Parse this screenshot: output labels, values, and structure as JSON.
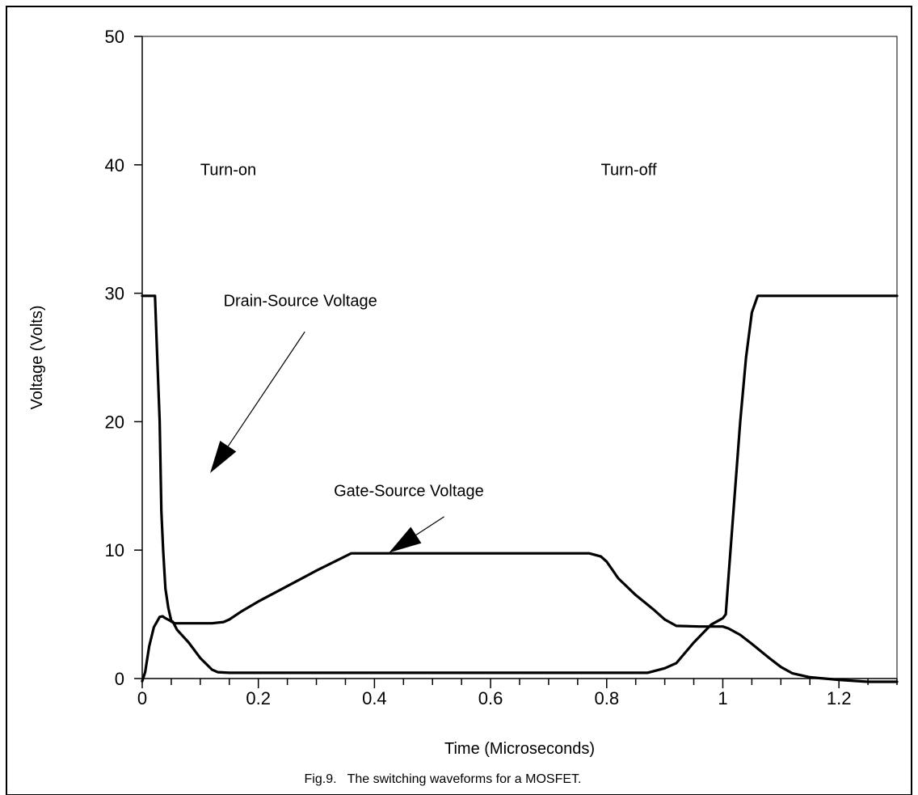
{
  "caption": "Fig.9.   The switching waveforms for a MOSFET.",
  "chart_data": {
    "type": "line",
    "title": "",
    "xlabel": "Time (Microseconds)",
    "ylabel": "Voltage (Volts)",
    "xlim": [
      0,
      1.3
    ],
    "ylim": [
      0,
      50
    ],
    "x_tick_values": [
      0,
      0.2,
      0.4,
      0.6,
      0.8,
      1,
      1.2
    ],
    "x_tick_labels": [
      "0",
      "0.2",
      "0.4",
      "0.6",
      "0.8",
      "1",
      "1.2"
    ],
    "x_minor_step": 0.05,
    "y_tick_values": [
      0,
      10,
      20,
      30,
      40,
      50
    ],
    "y_tick_labels": [
      "0",
      "10",
      "20",
      "30",
      "40",
      "50"
    ],
    "grid": false,
    "legend": "none",
    "series": [
      {
        "name": "Drain-Source Voltage",
        "x": [
          0,
          0.022,
          0.025,
          0.03,
          0.033,
          0.036,
          0.04,
          0.045,
          0.05,
          0.053,
          0.06,
          0.08,
          0.1,
          0.12,
          0.13,
          0.15,
          0.2,
          0.3,
          0.4,
          0.5,
          0.6,
          0.7,
          0.8,
          0.87,
          0.9,
          0.92,
          0.95,
          0.98,
          1.0,
          1.005,
          1.01,
          1.02,
          1.03,
          1.04,
          1.05,
          1.06,
          1.1,
          1.2,
          1.3
        ],
        "y": [
          29.8,
          29.8,
          26,
          20,
          13,
          10,
          7,
          5.5,
          4.5,
          4.4,
          3.8,
          2.8,
          1.6,
          0.7,
          0.5,
          0.45,
          0.45,
          0.45,
          0.45,
          0.45,
          0.45,
          0.45,
          0.45,
          0.45,
          0.8,
          1.2,
          2.8,
          4.2,
          4.7,
          5,
          8,
          14,
          20,
          25,
          28.5,
          29.8,
          29.8,
          29.8,
          29.8
        ]
      },
      {
        "name": "Gate-Source Voltage",
        "x": [
          0,
          0.005,
          0.012,
          0.02,
          0.03,
          0.035,
          0.04,
          0.048,
          0.055,
          0.1,
          0.12,
          0.14,
          0.15,
          0.17,
          0.2,
          0.25,
          0.3,
          0.34,
          0.36,
          0.4,
          0.5,
          0.6,
          0.7,
          0.77,
          0.79,
          0.8,
          0.82,
          0.85,
          0.88,
          0.9,
          0.92,
          0.96,
          1.0,
          1.01,
          1.03,
          1.05,
          1.08,
          1.1,
          1.12,
          1.15,
          1.2,
          1.25,
          1.3
        ],
        "y": [
          -0.2,
          0.5,
          2.5,
          4,
          4.8,
          4.85,
          4.7,
          4.5,
          4.3,
          4.3,
          4.3,
          4.4,
          4.6,
          5.2,
          6,
          7.2,
          8.4,
          9.3,
          9.75,
          9.75,
          9.75,
          9.75,
          9.75,
          9.75,
          9.5,
          9.1,
          7.8,
          6.5,
          5.4,
          4.6,
          4.1,
          4.05,
          4.05,
          3.9,
          3.4,
          2.7,
          1.6,
          0.9,
          0.4,
          0.1,
          -0.1,
          -0.25,
          -0.25
        ]
      }
    ],
    "annotations": [
      {
        "text": "Turn-on",
        "x": 0.1,
        "y": 39.2
      },
      {
        "text": "Turn-off",
        "x": 0.79,
        "y": 39.2
      },
      {
        "text": "Drain-Source Voltage",
        "x": 0.14,
        "y": 29.0
      },
      {
        "text": "Gate-Source Voltage",
        "x": 0.33,
        "y": 14.2
      }
    ],
    "arrows": [
      {
        "target": "Drain-Source Voltage",
        "from": [
          0.28,
          27.0
        ],
        "to": [
          0.117,
          16.0
        ]
      },
      {
        "target": "Gate-Source Voltage",
        "from": [
          0.52,
          12.6
        ],
        "to": [
          0.425,
          9.8
        ]
      }
    ]
  }
}
